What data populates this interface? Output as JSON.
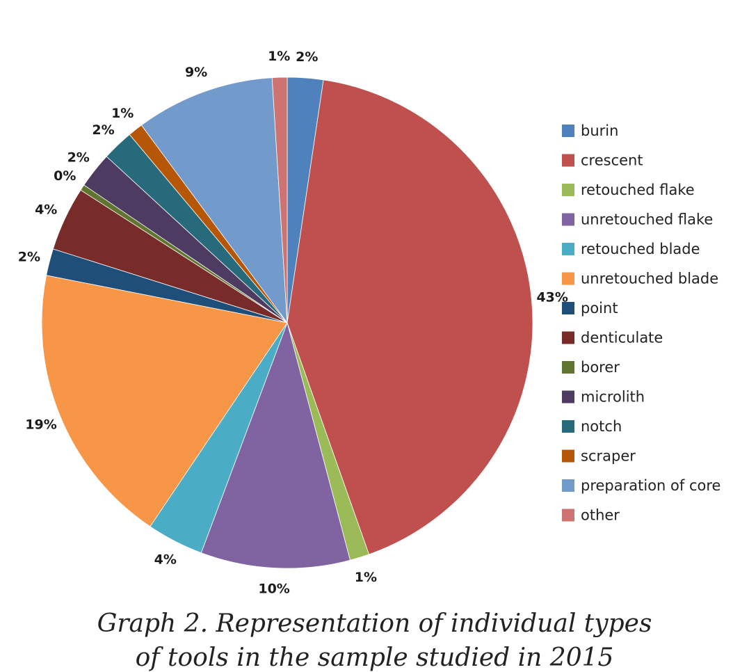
{
  "chart_data": {
    "type": "pie",
    "title": "",
    "categories": [
      "burin",
      "crescent",
      "retouched flake",
      "unretouched flake",
      "retouched blade",
      "unretouched blade",
      "point",
      "denticulate",
      "borer",
      "microlith",
      "notch",
      "scraper",
      "preparation of core",
      "other"
    ],
    "values": [
      2.4,
      43.0,
      1.3,
      10.0,
      3.8,
      19.0,
      1.8,
      4.3,
      0.4,
      2.4,
      2.1,
      1.0,
      9.3,
      1.0
    ],
    "labels": [
      "2%",
      "43%",
      "1%",
      "10%",
      "4%",
      "19%",
      "2%",
      "4%",
      "0%",
      "2%",
      "2%",
      "1%",
      "9%",
      "1%"
    ],
    "colors": [
      "#4f81bd",
      "#c0504d",
      "#9bbb59",
      "#8064a2",
      "#4bacc6",
      "#f79646",
      "#1f4e79",
      "#772c2a",
      "#5f7530",
      "#4d3b62",
      "#276a7c",
      "#b65708",
      "#729aca",
      "#cd7371"
    ],
    "start_angle_deg": 0,
    "direction": "clockwise",
    "legend_position": "right"
  },
  "caption": {
    "line1": "Graph 2. Representation of  individual types",
    "line2": "of  tools in the sample studied in 2015"
  }
}
